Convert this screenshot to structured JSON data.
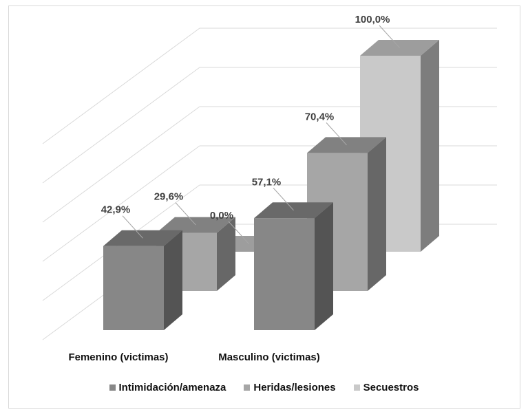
{
  "chart_data": {
    "type": "bar",
    "categories": [
      "Femenino (victimas)",
      "Masculino (victimas)"
    ],
    "series": [
      {
        "name": "Intimidación/amenaza",
        "values": [
          42.9,
          57.1
        ],
        "labels": [
          "42,9%",
          "57,1%"
        ],
        "color": "#878787"
      },
      {
        "name": "Heridas/lesiones",
        "values": [
          29.6,
          70.4
        ],
        "labels": [
          "29,6%",
          "70,4%"
        ],
        "color": "#a6a6a6"
      },
      {
        "name": "Secuestros",
        "values": [
          0.0,
          100.0
        ],
        "labels": [
          "0,0%",
          "100,0%"
        ],
        "color": "#c9c9c9"
      }
    ],
    "ylim": [
      0,
      100
    ],
    "grid": true,
    "three_d": true,
    "legend_position": "bottom",
    "title": "",
    "xlabel": "",
    "ylabel": ""
  }
}
